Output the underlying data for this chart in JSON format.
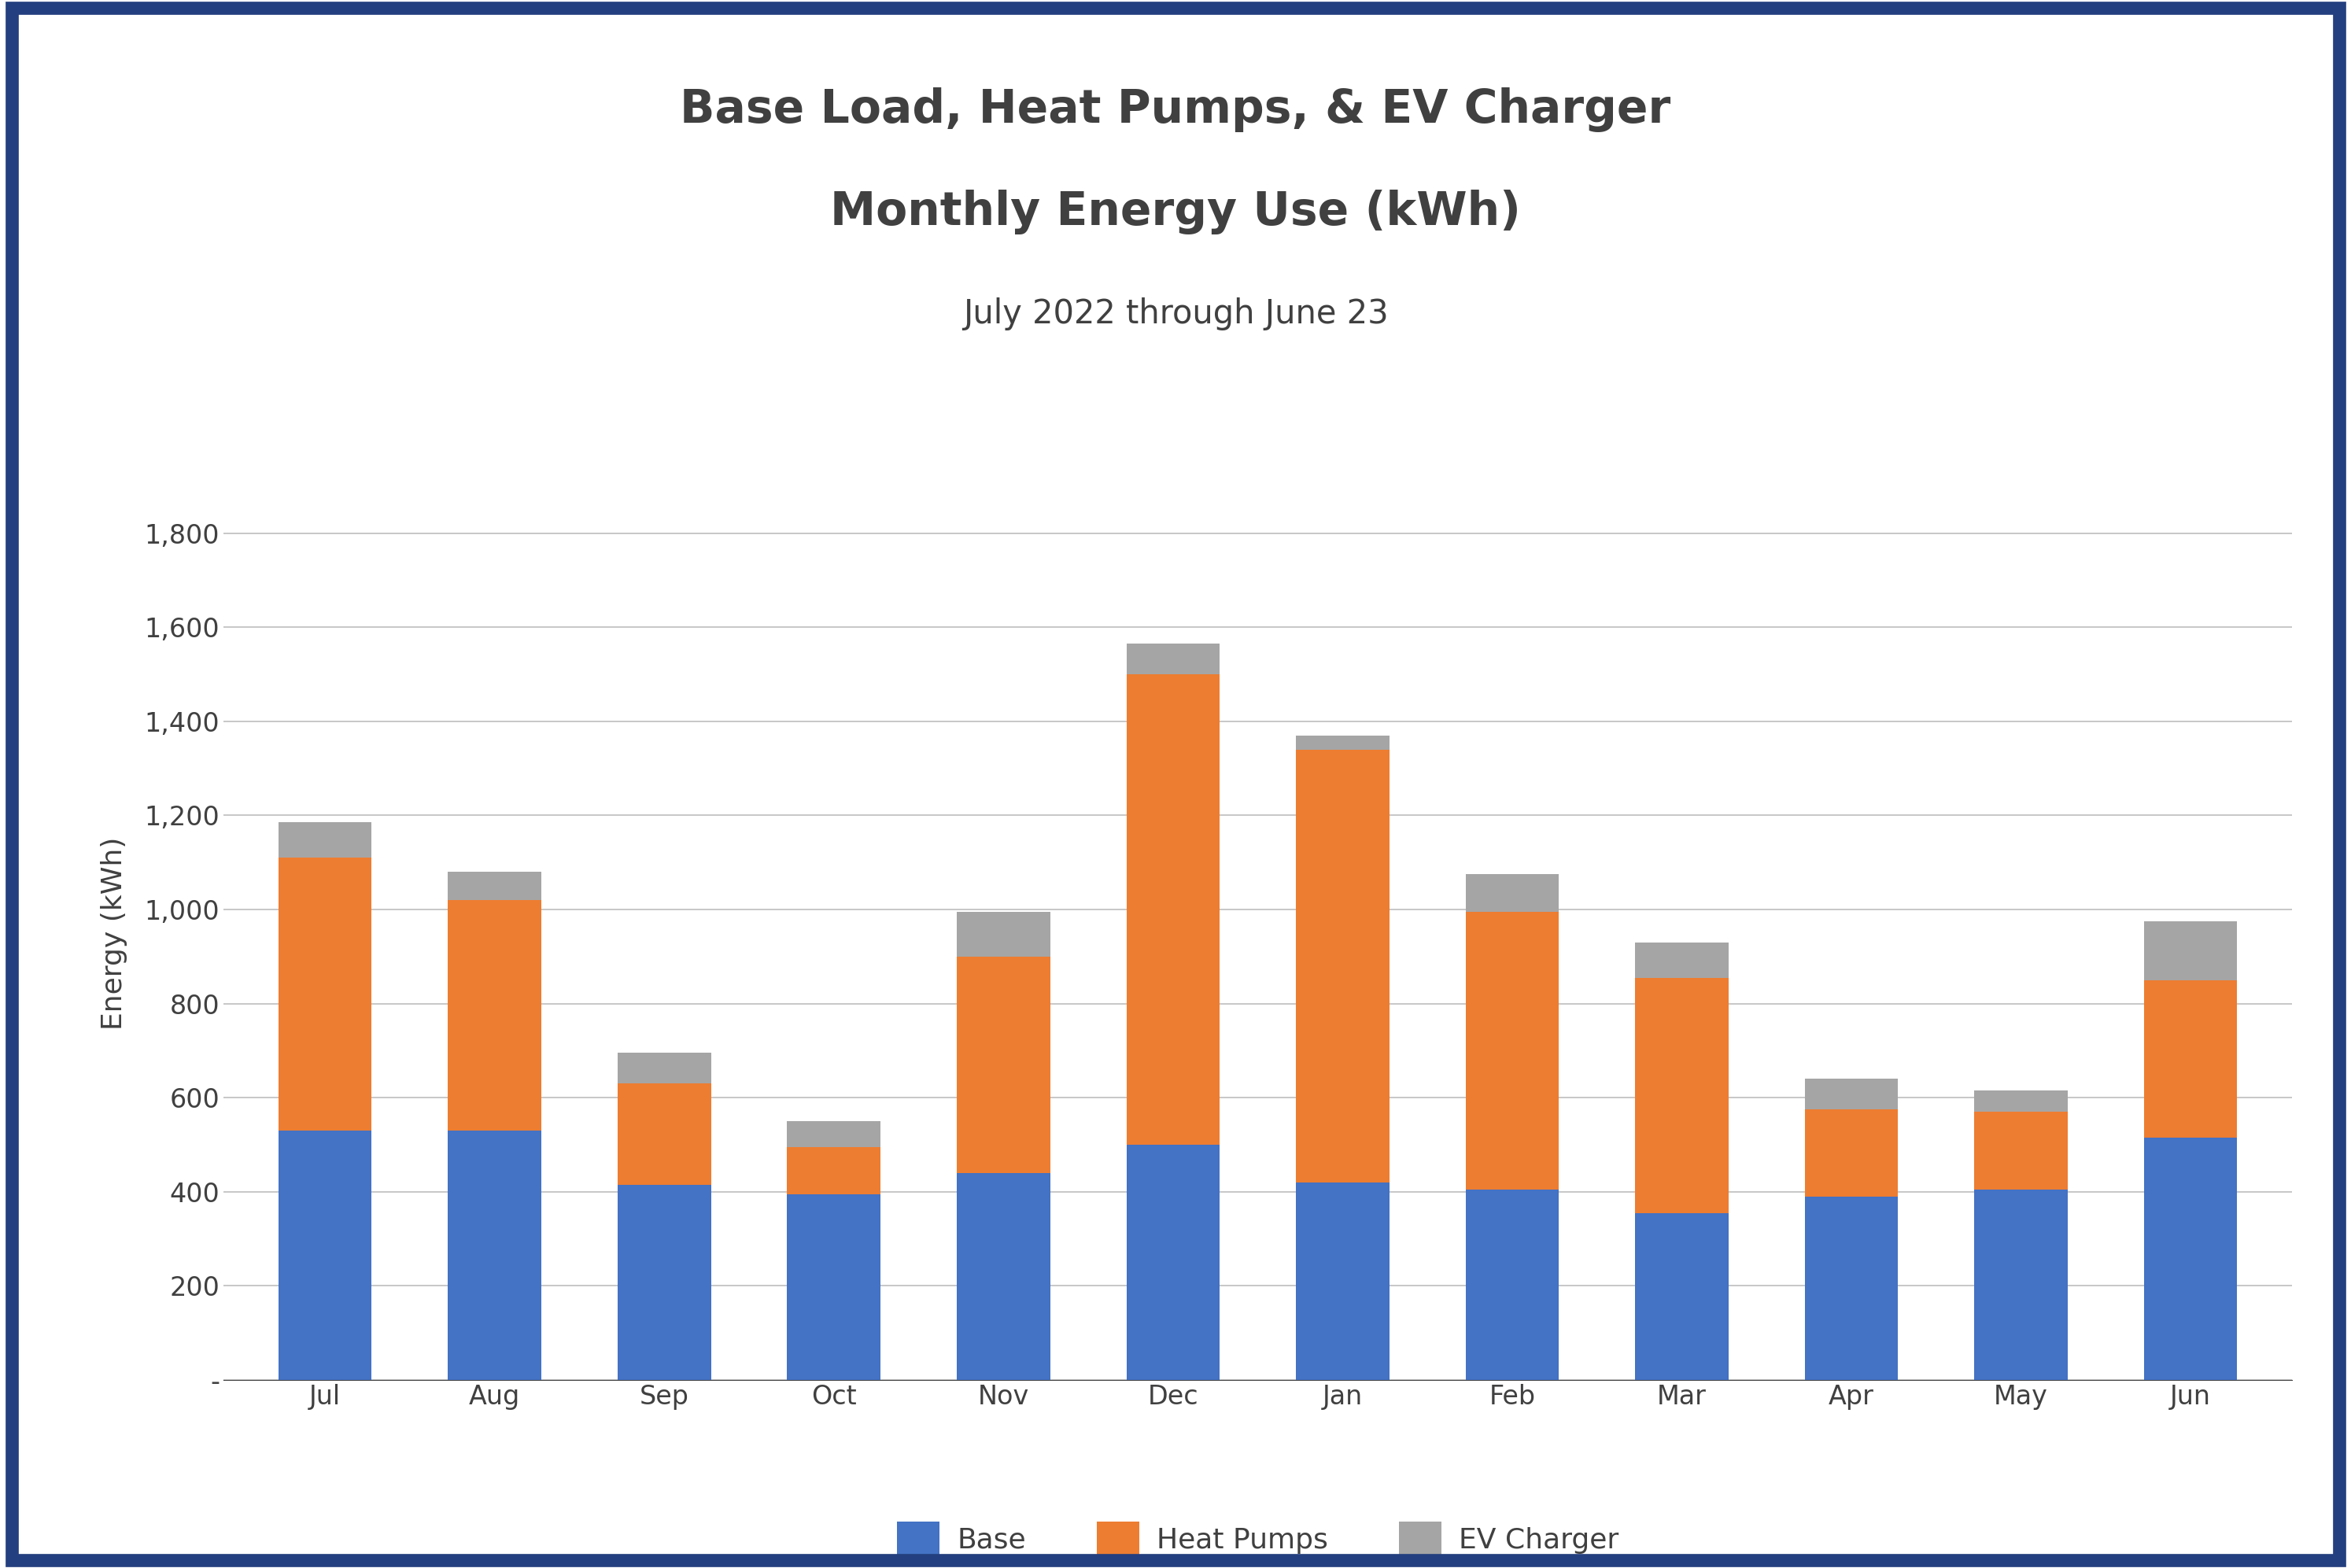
{
  "title_line1": "Base Load, Heat Pumps, & EV Charger",
  "title_line2": "Monthly Energy Use (kWh)",
  "subtitle": "July 2022 through June 23",
  "xlabel": "",
  "ylabel": "Energy (kWh)",
  "categories": [
    "Jul",
    "Aug",
    "Sep",
    "Oct",
    "Nov",
    "Dec",
    "Jan",
    "Feb",
    "Mar",
    "Apr",
    "May",
    "Jun"
  ],
  "base": [
    530,
    530,
    415,
    395,
    440,
    500,
    420,
    405,
    355,
    390,
    405,
    515
  ],
  "heat_pumps": [
    580,
    490,
    215,
    100,
    460,
    1000,
    920,
    590,
    500,
    185,
    165,
    335
  ],
  "ev_charger": [
    75,
    60,
    65,
    55,
    95,
    65,
    30,
    80,
    75,
    65,
    45,
    125
  ],
  "base_color": "#4472C4",
  "heat_pumps_color": "#ED7D31",
  "ev_charger_color": "#A5A5A5",
  "ylim": [
    0,
    1900
  ],
  "yticks": [
    0,
    200,
    400,
    600,
    800,
    1000,
    1200,
    1400,
    1600,
    1800
  ],
  "ytick_labels": [
    "-",
    "200",
    "400",
    "600",
    "800",
    "1,000",
    "1,200",
    "1,400",
    "1,600",
    "1,800"
  ],
  "title_fontsize": 42,
  "subtitle_fontsize": 30,
  "axis_label_fontsize": 26,
  "tick_fontsize": 24,
  "legend_fontsize": 26,
  "background_color": "#FFFFFF",
  "border_color": "#243F7F",
  "border_width": 12,
  "grid_color": "#BEBEBE",
  "text_color": "#404040"
}
